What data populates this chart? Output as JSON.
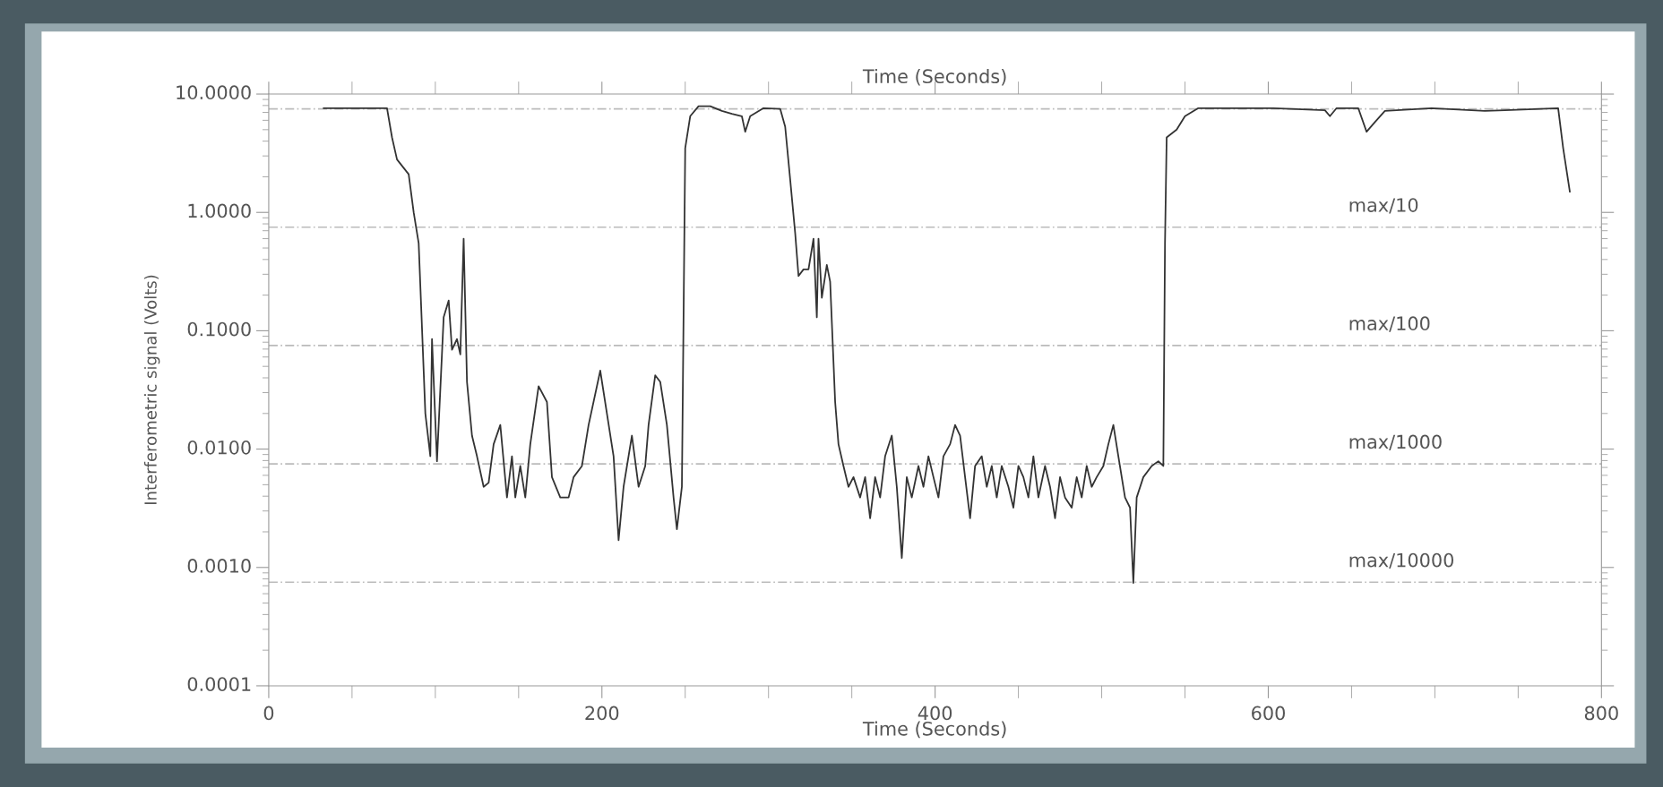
{
  "chart_data": {
    "type": "line",
    "xlabel": "Time (Seconds)",
    "x2label": "Time (Seconds)",
    "ylabel": "Interferometric signal (Volts)",
    "log": "y",
    "grid": false,
    "legend": false,
    "marker": "none",
    "line_style": "solid",
    "xlim": [
      0,
      800
    ],
    "xticks": [
      0,
      {
        "value": 50,
        "label": null
      },
      {
        "value": 100,
        "label": null
      },
      {
        "value": 150,
        "label": null
      },
      200,
      {
        "value": 250,
        "label": null
      },
      {
        "value": 300,
        "label": null
      },
      {
        "value": 350,
        "label": null
      },
      400,
      {
        "value": 450,
        "label": null
      },
      {
        "value": 500,
        "label": null
      },
      {
        "value": 550,
        "label": null
      },
      600,
      {
        "value": 650,
        "label": null
      },
      {
        "value": 700,
        "label": null
      },
      {
        "value": 750,
        "label": null
      },
      800
    ],
    "ylim": [
      0.0001,
      10
    ],
    "yticks": [
      {
        "value": 0.0001,
        "label": "0.0001"
      },
      {
        "value": 0.001,
        "label": "0.0010"
      },
      {
        "value": 0.01,
        "label": "0.0100"
      },
      {
        "value": 0.1,
        "label": "0.1000"
      },
      {
        "value": 1,
        "label": "1.0000"
      },
      {
        "value": 10,
        "label": "10.0000"
      }
    ],
    "ref_lines": [
      {
        "axis": "y",
        "value": 7.5,
        "label": null,
        "color": "#bbbbbb",
        "line_style": "dashed"
      },
      {
        "axis": "y",
        "value": 0.75,
        "label": "max/10",
        "color": "#bbbbbb",
        "line_style": "dashed"
      },
      {
        "axis": "y",
        "value": 0.075,
        "label": "max/100",
        "color": "#bbbbbb",
        "line_style": "dashed"
      },
      {
        "axis": "y",
        "value": 0.0075,
        "label": "max/1000",
        "color": "#bbbbbb",
        "line_style": "dashed"
      },
      {
        "axis": "y",
        "value": 0.00075,
        "label": "max/10000",
        "color": "#bbbbbb",
        "line_style": "dashed"
      }
    ],
    "series": [
      {
        "color": "#333333",
        "x": [
          33,
          71,
          74,
          77,
          84,
          87,
          90,
          92,
          94,
          97,
          98,
          101,
          105,
          108,
          110,
          113,
          115,
          117,
          119,
          122,
          125,
          129,
          132,
          135,
          139,
          143,
          146,
          148,
          151,
          154,
          157,
          162,
          167,
          170,
          175,
          180,
          183,
          188,
          192,
          199,
          203,
          207,
          210,
          213,
          218,
          222,
          226,
          228,
          232,
          235,
          239,
          243,
          245,
          248,
          250,
          253,
          258,
          265,
          272,
          278,
          284,
          286,
          289,
          297,
          307,
          310,
          313,
          316,
          318,
          321,
          324,
          327,
          329,
          330,
          332,
          335,
          337,
          340,
          342,
          345,
          348,
          351,
          355,
          358,
          361,
          364,
          367,
          370,
          374,
          377,
          380,
          383,
          386,
          390,
          393,
          396,
          399,
          402,
          405,
          409,
          412,
          415,
          418,
          421,
          424,
          428,
          431,
          434,
          437,
          440,
          444,
          447,
          450,
          453,
          456,
          459,
          462,
          466,
          469,
          472,
          475,
          478,
          482,
          485,
          488,
          491,
          494,
          497,
          501,
          504,
          507,
          510,
          514,
          517,
          519,
          521,
          525,
          530,
          534,
          537,
          538,
          539,
          545,
          550,
          558,
          603,
          634,
          637,
          641,
          654,
          659,
          664,
          670,
          698,
          730,
          742,
          774,
          777,
          781
        ],
        "values": [
          7.6,
          7.6,
          4.3,
          2.8,
          2.1,
          1.0,
          0.55,
          0.105,
          0.02,
          0.0087,
          0.085,
          0.0079,
          0.13,
          0.18,
          0.069,
          0.085,
          0.063,
          0.6,
          0.037,
          0.013,
          0.0087,
          0.0048,
          0.0052,
          0.011,
          0.016,
          0.0039,
          0.0087,
          0.0039,
          0.0072,
          0.0039,
          0.011,
          0.034,
          0.025,
          0.0058,
          0.0039,
          0.0039,
          0.0058,
          0.0072,
          0.016,
          0.046,
          0.02,
          0.0087,
          0.0017,
          0.0048,
          0.013,
          0.0048,
          0.0072,
          0.016,
          0.042,
          0.037,
          0.016,
          0.0039,
          0.0021,
          0.0048,
          3.5,
          6.5,
          7.9,
          7.9,
          7.2,
          6.8,
          6.5,
          4.8,
          6.5,
          7.6,
          7.5,
          5.3,
          1.9,
          0.67,
          0.29,
          0.33,
          0.33,
          0.6,
          0.13,
          0.6,
          0.19,
          0.36,
          0.26,
          0.025,
          0.011,
          0.0072,
          0.0048,
          0.0058,
          0.0039,
          0.0058,
          0.0026,
          0.0058,
          0.0039,
          0.0087,
          0.013,
          0.0048,
          0.0012,
          0.0058,
          0.0039,
          0.0072,
          0.0048,
          0.0087,
          0.0058,
          0.0039,
          0.0087,
          0.011,
          0.016,
          0.013,
          0.0058,
          0.0026,
          0.0072,
          0.0087,
          0.0048,
          0.0072,
          0.0039,
          0.0072,
          0.0048,
          0.0032,
          0.0072,
          0.0058,
          0.0039,
          0.0087,
          0.0039,
          0.0072,
          0.0048,
          0.0026,
          0.0058,
          0.0039,
          0.0032,
          0.0058,
          0.0039,
          0.0072,
          0.0048,
          0.0058,
          0.0072,
          0.011,
          0.016,
          0.0087,
          0.0039,
          0.0032,
          0.00074,
          0.0039,
          0.0058,
          0.0072,
          0.0079,
          0.0072,
          0.55,
          4.3,
          5.0,
          6.5,
          7.6,
          7.6,
          7.3,
          6.5,
          7.6,
          7.6,
          4.8,
          5.8,
          7.2,
          7.6,
          7.2,
          7.3,
          7.6,
          3.5,
          1.5
        ]
      }
    ]
  }
}
